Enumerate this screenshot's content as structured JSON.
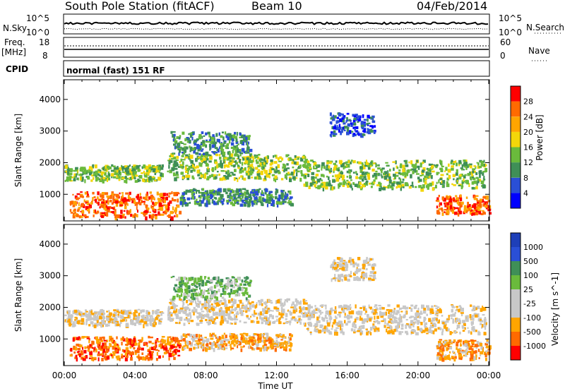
{
  "header": {
    "station": "South Pole Station (fitACF)",
    "beam": "Beam 10",
    "date": "04/Feb/2014"
  },
  "noise_panel": {
    "left_label": "N.Sky",
    "right_label": "N.Search",
    "left_ticks": [
      "10^5",
      "10^0"
    ],
    "right_ticks": [
      "10^5",
      "10^0"
    ]
  },
  "freq_panel": {
    "left_label_1": "Freq.",
    "left_label_2": "[MHz]",
    "right_label": "Nave",
    "left_ticks": [
      "18",
      "8"
    ],
    "right_ticks": [
      "60",
      "0"
    ]
  },
  "cpid": {
    "label": "CPID",
    "value": "normal (fast) 151 RF"
  },
  "colors": {
    "power": [
      "#0000ff",
      "#2a4fd6",
      "#3f8f57",
      "#6aba3c",
      "#f3d60a",
      "#ffa500",
      "#ff6a00",
      "#ff0000"
    ],
    "velocity": [
      "#ff0000",
      "#ff6a00",
      "#ffa500",
      "#c8c8c8",
      "#c8c8c8",
      "#6aba3c",
      "#3f8f57",
      "#2a4fd6",
      "#1e3fb8"
    ]
  },
  "chart_data": [
    {
      "type": "heatmap",
      "name": "power",
      "ylabel": "Slant Range [km]",
      "colorbar_label": "Power [dB]",
      "colorbar_ticks": [
        "4",
        "8",
        "12",
        "16",
        "20",
        "24",
        "28"
      ],
      "ylim": [
        180,
        4600
      ],
      "yticks": [
        "1000",
        "2000",
        "3000",
        "4000"
      ],
      "xlim": [
        0,
        24
      ],
      "features": [
        {
          "t": [
            0,
            5.5
          ],
          "r": [
            1450,
            1950
          ],
          "level": 3
        },
        {
          "t": [
            0.3,
            6.5
          ],
          "r": [
            300,
            1100
          ],
          "level": 6
        },
        {
          "t": [
            5.8,
            13.6
          ],
          "r": [
            1500,
            2300
          ],
          "level": 3
        },
        {
          "t": [
            6.0,
            10.5
          ],
          "r": [
            2300,
            3000
          ],
          "level": 2
        },
        {
          "t": [
            13.5,
            23.8
          ],
          "r": [
            1200,
            2100
          ],
          "level": 3
        },
        {
          "t": [
            6.5,
            12.8
          ],
          "r": [
            700,
            1200
          ],
          "level": 2
        },
        {
          "t": [
            21.0,
            24.0
          ],
          "r": [
            400,
            1000
          ],
          "level": 6
        },
        {
          "t": [
            15.0,
            17.5
          ],
          "r": [
            2900,
            3600
          ],
          "level": 1
        }
      ]
    },
    {
      "type": "heatmap",
      "name": "velocity",
      "ylabel": "Slant Range [km]",
      "xlabel": "Time UT",
      "colorbar_label": "Velocity [m s^-1]",
      "colorbar_ticks": [
        "1000",
        "500",
        "100",
        "25",
        "-25",
        "-100",
        "-500",
        "-1000"
      ],
      "ylim": [
        180,
        4600
      ],
      "yticks": [
        "1000",
        "2000",
        "3000",
        "4000"
      ],
      "xlim": [
        0,
        24
      ],
      "xticks": [
        "00:00",
        "04:00",
        "08:00",
        "12:00",
        "16:00",
        "20:00",
        "00:00"
      ],
      "features": [
        {
          "t": [
            0,
            5.5
          ],
          "r": [
            1450,
            1950
          ],
          "level": 3
        },
        {
          "t": [
            0.3,
            6.5
          ],
          "r": [
            400,
            1100
          ],
          "level": 1
        },
        {
          "t": [
            5.8,
            13.6
          ],
          "r": [
            1500,
            2300
          ],
          "level": 3
        },
        {
          "t": [
            6.0,
            10.5
          ],
          "r": [
            2300,
            3000
          ],
          "level": 5
        },
        {
          "t": [
            13.5,
            23.8
          ],
          "r": [
            1200,
            2100
          ],
          "level": 3
        },
        {
          "t": [
            6.5,
            12.8
          ],
          "r": [
            700,
            1200
          ],
          "level": 2
        },
        {
          "t": [
            21.0,
            24.0
          ],
          "r": [
            400,
            1000
          ],
          "level": 2
        },
        {
          "t": [
            15.0,
            17.5
          ],
          "r": [
            2900,
            3600
          ],
          "level": 3
        }
      ]
    }
  ]
}
